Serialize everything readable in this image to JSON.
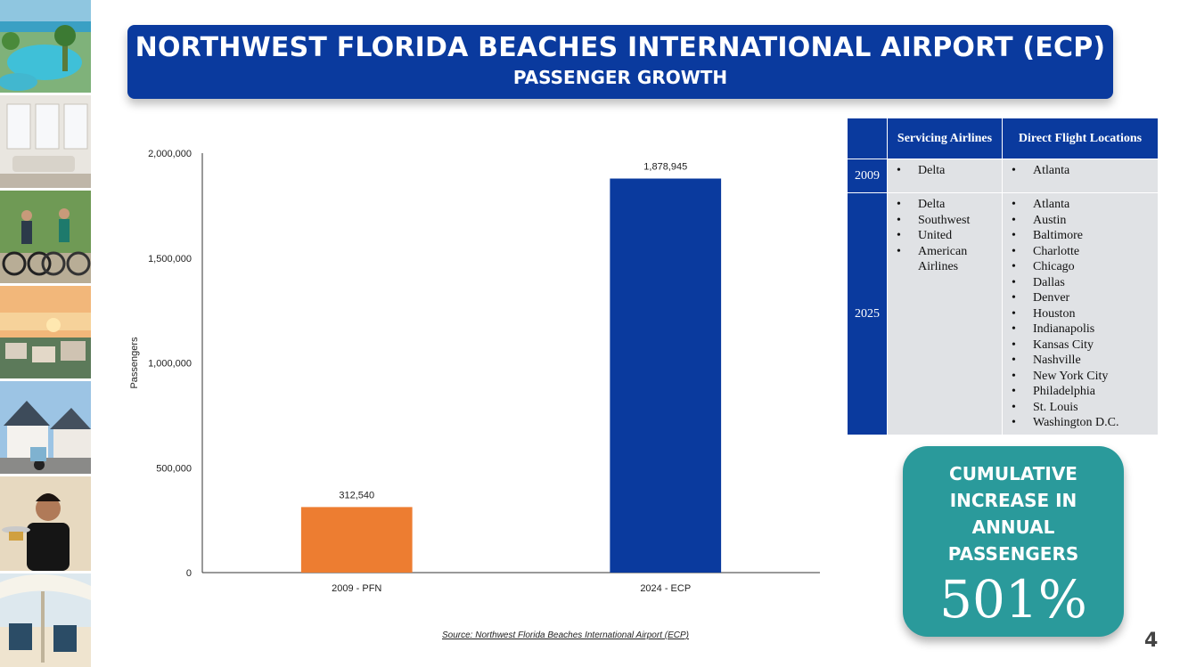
{
  "title": "NORTHWEST FLORIDA BEACHES INTERNATIONAL AIRPORT (ECP)",
  "subtitle": "PASSENGER GROWTH",
  "chart_data": {
    "type": "bar",
    "title": "",
    "xlabel": "",
    "ylabel": "Passengers",
    "categories": [
      "2009 - PFN",
      "2024 - ECP"
    ],
    "values": [
      312540,
      1878945
    ],
    "value_labels": [
      "312,540",
      "1,878,945"
    ],
    "bar_colors": [
      "#ed7d31",
      "#0a3a9e"
    ],
    "ylim": [
      0,
      2000000
    ],
    "yticks": [
      0,
      500000,
      1000000,
      1500000,
      2000000
    ],
    "ytick_labels": [
      "0",
      "500,000",
      "1,000,000",
      "1,500,000",
      "2,000,000"
    ],
    "grid": false,
    "legend": "none"
  },
  "source": "Source: Northwest Florida Beaches International Airport (ECP)",
  "table": {
    "headers": [
      "",
      "Servicing Airlines",
      "Direct Flight Locations"
    ],
    "rows": [
      {
        "year": "2009",
        "airlines": [
          "Delta"
        ],
        "locations": [
          "Atlanta"
        ]
      },
      {
        "year": "2025",
        "airlines": [
          "Delta",
          "Southwest",
          "United",
          "American Airlines"
        ],
        "locations": [
          "Atlanta",
          "Austin",
          "Baltimore",
          "Charlotte",
          "Chicago",
          "Dallas",
          "Denver",
          "Houston",
          "Indianapolis",
          "Kansas City",
          "Nashville",
          "New York City",
          "Philadelphia",
          "St. Louis",
          "Washington D.C."
        ]
      }
    ]
  },
  "stat": {
    "label": "CUMULATIVE INCREASE IN ANNUAL PASSENGERS",
    "value": "501%"
  },
  "page_number": "4",
  "colors": {
    "banner_blue": "#0a3a9e",
    "stat_teal": "#2a9a9b",
    "bar_2009": "#ed7d31",
    "bar_2024": "#0a3a9e",
    "table_cell_gray": "#e0e2e5"
  },
  "photo_strip": [
    "resort-pool-photo",
    "living-room-photo",
    "cyclists-photo",
    "sunset-town-photo",
    "houses-scooter-photo",
    "server-waitress-photo",
    "beach-chairs-photo"
  ]
}
